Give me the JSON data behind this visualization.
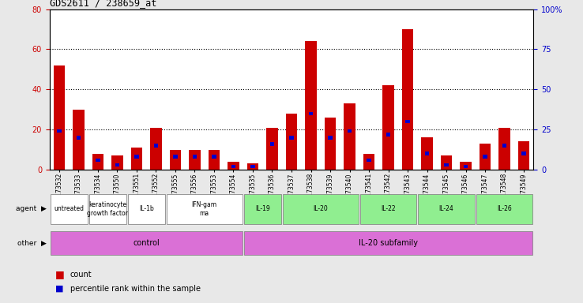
{
  "title": "GDS2611 / 238659_at",
  "samples": [
    "GSM173532",
    "GSM173533",
    "GSM173534",
    "GSM173550",
    "GSM173551",
    "GSM173552",
    "GSM173555",
    "GSM173556",
    "GSM173553",
    "GSM173554",
    "GSM173535",
    "GSM173536",
    "GSM173537",
    "GSM173538",
    "GSM173539",
    "GSM173540",
    "GSM173541",
    "GSM173542",
    "GSM173543",
    "GSM173544",
    "GSM173545",
    "GSM173546",
    "GSM173547",
    "GSM173548",
    "GSM173549"
  ],
  "count_values": [
    52,
    30,
    8,
    7,
    11,
    21,
    10,
    10,
    10,
    4,
    3,
    21,
    28,
    64,
    26,
    33,
    8,
    42,
    70,
    16,
    7,
    4,
    13,
    21,
    14
  ],
  "percentile_values": [
    24,
    20,
    6,
    3,
    8,
    15,
    8,
    8,
    8,
    2,
    2,
    16,
    20,
    35,
    20,
    24,
    6,
    22,
    30,
    10,
    3,
    2,
    8,
    15,
    10
  ],
  "agent_labels": [
    {
      "label": "untreated",
      "start": 0,
      "end": 2,
      "color": "white"
    },
    {
      "label": "keratinocyte\ngrowth factor",
      "start": 2,
      "end": 4,
      "color": "white"
    },
    {
      "label": "IL-1b",
      "start": 4,
      "end": 6,
      "color": "white"
    },
    {
      "label": "IFN-gam\nma",
      "start": 6,
      "end": 10,
      "color": "white"
    },
    {
      "label": "IL-19",
      "start": 10,
      "end": 12,
      "color": "#90ee90"
    },
    {
      "label": "IL-20",
      "start": 12,
      "end": 16,
      "color": "#90ee90"
    },
    {
      "label": "IL-22",
      "start": 16,
      "end": 19,
      "color": "#90ee90"
    },
    {
      "label": "IL-24",
      "start": 19,
      "end": 22,
      "color": "#90ee90"
    },
    {
      "label": "IL-26",
      "start": 22,
      "end": 25,
      "color": "#90ee90"
    }
  ],
  "other_labels": [
    {
      "label": "control",
      "start": 0,
      "end": 10
    },
    {
      "label": "IL-20 subfamily",
      "start": 10,
      "end": 25
    }
  ],
  "ylim_left": [
    0,
    80
  ],
  "ylim_right": [
    0,
    100
  ],
  "yticks_left": [
    0,
    20,
    40,
    60,
    80
  ],
  "yticks_right": [
    0,
    25,
    50,
    75,
    100
  ],
  "bar_color": "#cc0000",
  "percentile_color": "#0000cc",
  "left_axis_color": "#cc0000",
  "right_axis_color": "#0000cc",
  "other_color": "#da70d6"
}
